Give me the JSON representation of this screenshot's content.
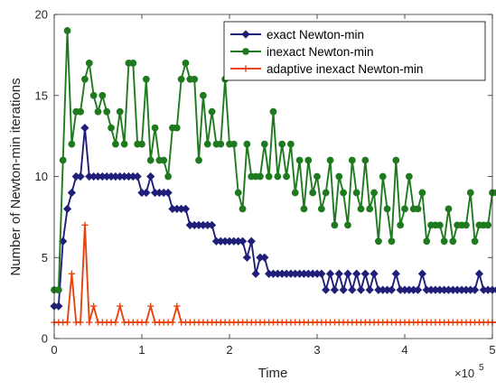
{
  "chart_data": {
    "type": "line",
    "xlabel": "Time",
    "ylabel": "Number of Newton-min iterations",
    "x_multiplier_label": "×10",
    "x_multiplier_exponent": "5",
    "xlim": [
      0,
      5
    ],
    "ylim": [
      0,
      20
    ],
    "xticks": [
      0,
      1,
      2,
      3,
      4,
      5
    ],
    "yticks": [
      0,
      5,
      10,
      15,
      20
    ],
    "grid": false,
    "legend_position": "top-right",
    "x_start": 0.0,
    "x_step": 0.05,
    "series": [
      {
        "name": "exact Newton-min",
        "color": "#1f1f7a",
        "marker": "diamond",
        "values": [
          2,
          2,
          6,
          8,
          9,
          10,
          10,
          13,
          10,
          10,
          10,
          10,
          10,
          10,
          10,
          10,
          10,
          10,
          10,
          10,
          9,
          9,
          10,
          9,
          9,
          9,
          9,
          8,
          8,
          8,
          8,
          7,
          7,
          7,
          7,
          7,
          7,
          6,
          6,
          6,
          6,
          6,
          6,
          6,
          5,
          6,
          4,
          5,
          5,
          4,
          4,
          4,
          4,
          4,
          4,
          4,
          4,
          4,
          4,
          4,
          4,
          4,
          3,
          4,
          3,
          4,
          3,
          4,
          3,
          4,
          3,
          4,
          3,
          4,
          3,
          3,
          3,
          3,
          4,
          3,
          3,
          3,
          3,
          3,
          4,
          3,
          3,
          3,
          3,
          3,
          3,
          3,
          3,
          3,
          3,
          3,
          3,
          4,
          3,
          3,
          3,
          3,
          3,
          3,
          3,
          3,
          3,
          2,
          2,
          2,
          4
        ]
      },
      {
        "name": "inexact Newton-min",
        "color": "#1f7a1f",
        "marker": "circle",
        "values": [
          3,
          3,
          11,
          19,
          12,
          14,
          14,
          16,
          17,
          15,
          14,
          15,
          14,
          13,
          12,
          14,
          12,
          17,
          17,
          12,
          12,
          16,
          11,
          13,
          11,
          11,
          10,
          13,
          13,
          16,
          17,
          16,
          16,
          11,
          15,
          12,
          14,
          12,
          12,
          16,
          12,
          12,
          9,
          8,
          12,
          10,
          10,
          10,
          12,
          10,
          14,
          10,
          12,
          10,
          12,
          9,
          11,
          8,
          11,
          9,
          10,
          8,
          9,
          11,
          7,
          10,
          9,
          7,
          11,
          9,
          8,
          11,
          8,
          9,
          6,
          10,
          8,
          6,
          11,
          7,
          8,
          10,
          8,
          8,
          9,
          6,
          7,
          7,
          7,
          6,
          8,
          6,
          7,
          7,
          7,
          9,
          6,
          7,
          7,
          7,
          9,
          9,
          7,
          7,
          8,
          7,
          9,
          7,
          10,
          6,
          7,
          7,
          6,
          9,
          7,
          6,
          7,
          9,
          9,
          7,
          6,
          10,
          7,
          6,
          6,
          6,
          6,
          6,
          7,
          8
        ]
      },
      {
        "name": "adaptive inexact Newton-min",
        "color": "#e8430f",
        "marker": "plus",
        "values": [
          1,
          1,
          1,
          1,
          4,
          1,
          1,
          7,
          1,
          2,
          1,
          1,
          1,
          1,
          1,
          2,
          1,
          1,
          1,
          1,
          1,
          1,
          2,
          1,
          1,
          1,
          1,
          1,
          2,
          1,
          1,
          1,
          1,
          1,
          1,
          1,
          1,
          1,
          1,
          1,
          1,
          1,
          1,
          1,
          1,
          1,
          1,
          1,
          1,
          1,
          1,
          1,
          1,
          1,
          1,
          1,
          1,
          1,
          1,
          1,
          1,
          1,
          1,
          1,
          1,
          1,
          1,
          1,
          1,
          1,
          1,
          1,
          1,
          1,
          1,
          1,
          1,
          1,
          1,
          1,
          1,
          1,
          1,
          1,
          1,
          1,
          1,
          1,
          1,
          1,
          1,
          1,
          1,
          1,
          1,
          1,
          1,
          1,
          1,
          1,
          1,
          1,
          1,
          1,
          1,
          1,
          1,
          1,
          1,
          1,
          1
        ]
      }
    ]
  }
}
